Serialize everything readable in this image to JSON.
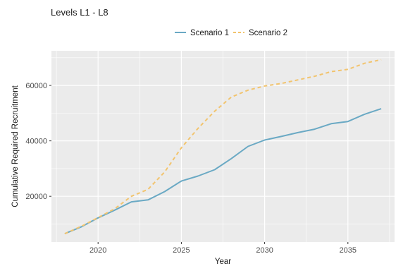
{
  "chart_data": {
    "type": "line",
    "title": "Levels L1 - L8",
    "xlabel": "Year",
    "ylabel": "Cumulative Required Recruitment",
    "xlim": [
      2017.2,
      2037.8
    ],
    "ylim": [
      3500,
      72500
    ],
    "x_ticks": [
      2020,
      2025,
      2030,
      2035
    ],
    "y_ticks": [
      20000,
      40000,
      60000
    ],
    "grid": true,
    "legend_position": "top",
    "x": [
      2018,
      2019,
      2020,
      2021,
      2022,
      2023,
      2024,
      2025,
      2026,
      2027,
      2028,
      2029,
      2030,
      2031,
      2032,
      2033,
      2034,
      2035,
      2036,
      2037
    ],
    "series": [
      {
        "name": "Scenario 1",
        "color": "#6aa9c4",
        "dash": "solid",
        "values": [
          6500,
          9000,
          12200,
          15000,
          18000,
          18700,
          21700,
          25500,
          27300,
          29600,
          33600,
          38000,
          40300,
          41600,
          43000,
          44200,
          46200,
          47000,
          49600,
          51600
        ]
      },
      {
        "name": "Scenario 2",
        "color": "#f2c46e",
        "dash": "dashed",
        "values": [
          6500,
          9200,
          12300,
          15500,
          20000,
          22500,
          28800,
          37500,
          44500,
          50700,
          55800,
          58300,
          59800,
          60700,
          62000,
          63300,
          65000,
          65800,
          68000,
          69300
        ]
      }
    ]
  }
}
